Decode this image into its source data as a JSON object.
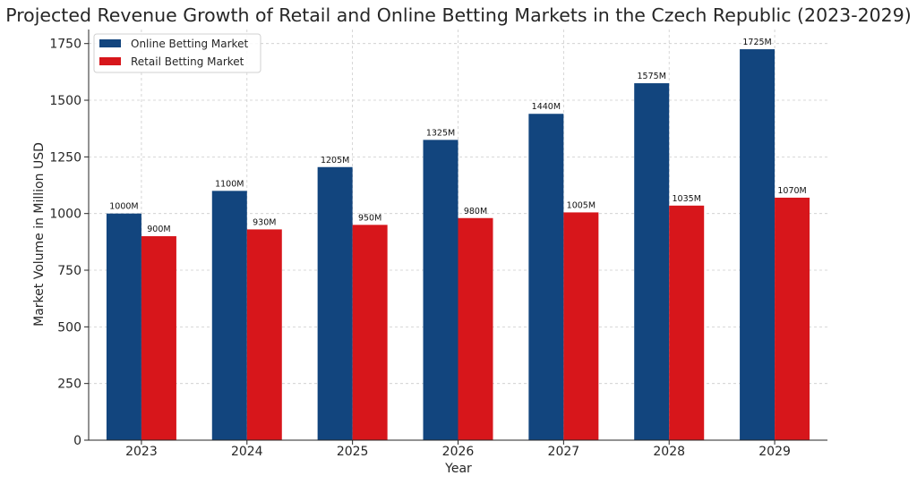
{
  "chart_data": {
    "type": "bar",
    "title": "Projected Revenue Growth of Retail and Online Betting Markets in the Czech Republic (2023-2029)",
    "xlabel": "Year",
    "ylabel": "Market Volume in Million USD",
    "categories": [
      "2023",
      "2024",
      "2025",
      "2026",
      "2027",
      "2028",
      "2029"
    ],
    "series": [
      {
        "name": "Online Betting Market",
        "color": "#12457e",
        "values": [
          1000,
          1100,
          1205,
          1325,
          1440,
          1575,
          1725
        ],
        "labels": [
          "1000M",
          "1100M",
          "1205M",
          "1325M",
          "1440M",
          "1575M",
          "1725M"
        ]
      },
      {
        "name": "Retail Betting Market",
        "color": "#d7161b",
        "values": [
          900,
          930,
          950,
          980,
          1005,
          1035,
          1070
        ],
        "labels": [
          "900M",
          "930M",
          "950M",
          "980M",
          "1005M",
          "1035M",
          "1070M"
        ]
      }
    ],
    "ylim": [
      0,
      1812
    ],
    "yticks": [
      0,
      250,
      500,
      750,
      1000,
      1250,
      1500,
      1750
    ],
    "ytick_labels": [
      "0",
      "250",
      "500",
      "750",
      "1000",
      "1250",
      "1500",
      "1750"
    ],
    "grid": true,
    "legend_position": "top-left"
  }
}
